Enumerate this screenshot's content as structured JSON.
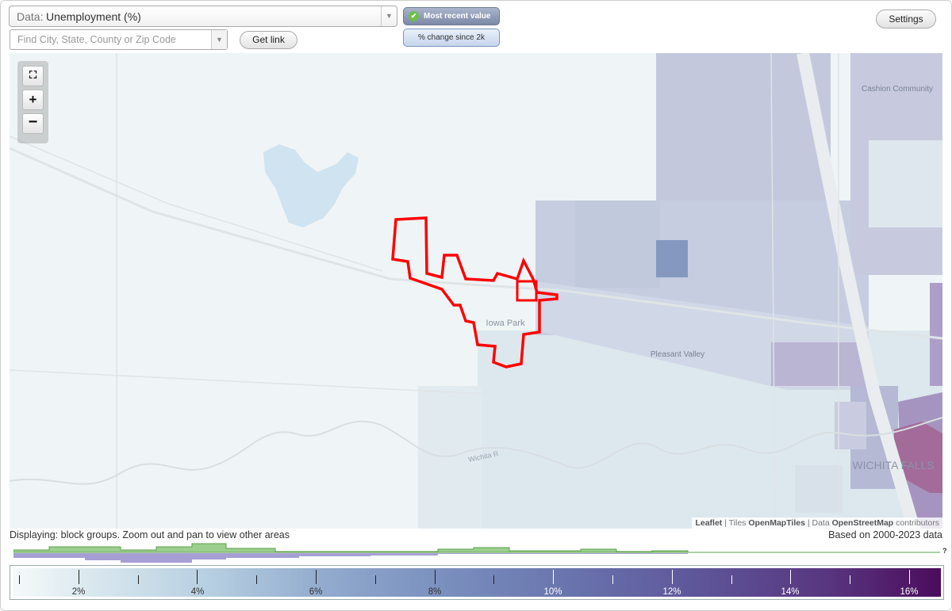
{
  "controls": {
    "data_label": "Data:",
    "data_value": "Unemployment (%)",
    "search_placeholder": "Find City, State, County or Zip Code",
    "get_link": "Get link",
    "most_recent": "Most recent value",
    "pct_change": "% change since 2k",
    "settings": "Settings"
  },
  "icons": {
    "dropdown": "chevron-down-icon",
    "check": "check-icon",
    "fullscreen": "fullscreen-icon",
    "zoom_in": "plus-icon",
    "zoom_out": "minus-icon"
  },
  "map": {
    "places": [
      "Cashion Community",
      "Iowa Park",
      "Pleasant Valley",
      "WICHITA FALLS"
    ],
    "river": "Wichita R",
    "highlight_color": "#ff0000"
  },
  "attribution": {
    "leaflet": "Leaflet",
    "tiles_prefix": "Tiles",
    "tiles": "OpenMapTiles",
    "data_prefix": "Data",
    "data": "OpenStreetMap",
    "contributors": "contributors"
  },
  "status": {
    "displaying": "Displaying: block groups. Zoom out and pan to view other areas",
    "based_on": "Based on 2000-2023 data"
  },
  "legend": {
    "labels": [
      "2%",
      "4%",
      "6%",
      "8%",
      "10%",
      "12%",
      "14%",
      "16%"
    ],
    "unknown_mark": "?"
  }
}
